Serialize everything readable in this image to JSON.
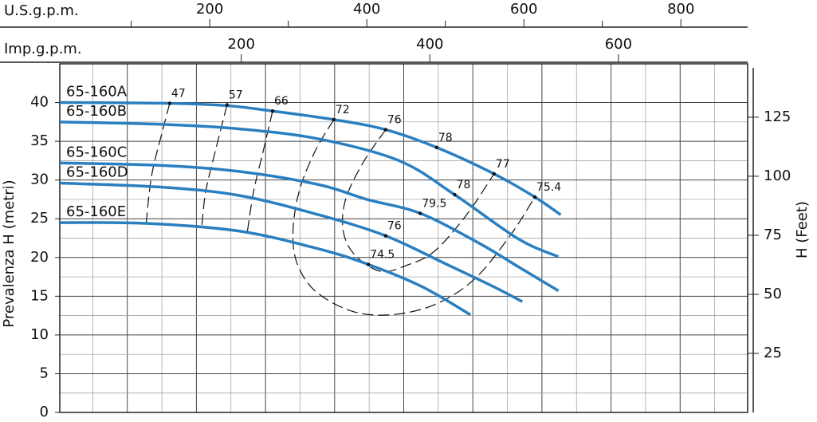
{
  "chart_data": {
    "type": "line",
    "xlabel": "U.S.g.p.m.",
    "x2label": "Imp.g.p.m.",
    "ylabel": "Prevalenza H (metri)",
    "y2label": "H (Feet)",
    "xlim": [
      9,
      885
    ],
    "xticks": [
      200,
      400,
      600,
      800
    ],
    "x_minor_ticks": [
      100,
      300,
      500,
      700
    ],
    "x2lim": [
      7.5,
      737
    ],
    "x2ticks": [
      200,
      400,
      600
    ],
    "xgrid": [
      95,
      183,
      271,
      359,
      447,
      535,
      623,
      711,
      799
    ],
    "ylim": [
      0,
      45
    ],
    "yticks": [
      0,
      5,
      10,
      15,
      20,
      25,
      30,
      35,
      40
    ],
    "y2lim": [
      0,
      147.6
    ],
    "y2ticks": [
      25,
      50,
      75,
      100,
      125
    ],
    "grid": true,
    "series": [
      {
        "name": "65-160A",
        "color": "#2a7fc1",
        "x": [
          9,
          149,
          222,
          280,
          358,
          424,
          489,
          562,
          614,
          647
        ],
        "values": [
          40,
          39.9,
          39.6,
          38.9,
          37.8,
          36.5,
          34.2,
          30.8,
          27.8,
          25.5
        ]
      },
      {
        "name": "65-160B",
        "color": "#2a7fc1",
        "x": [
          9,
          136,
          238,
          339,
          441,
          512,
          593,
          644
        ],
        "values": [
          37.5,
          37.2,
          36.6,
          35.3,
          32.5,
          28.1,
          22.4,
          20.1
        ]
      },
      {
        "name": "65-160C",
        "color": "#2a7fc1",
        "x": [
          9,
          136,
          238,
          339,
          400,
          468,
          542,
          593,
          644
        ],
        "values": [
          32.2,
          31.9,
          31.1,
          29.4,
          27.5,
          25.7,
          21.9,
          18.8,
          15.7
        ]
      },
      {
        "name": "65-160D",
        "color": "#2a7fc1",
        "x": [
          9,
          136,
          238,
          339,
          424,
          502,
          562,
          598
        ],
        "values": [
          29.6,
          29.1,
          28,
          25.5,
          22.8,
          19.1,
          16.2,
          14.3
        ]
      },
      {
        "name": "65-160E",
        "color": "#2a7fc1",
        "x": [
          9,
          119,
          238,
          339,
          402,
          471,
          532
        ],
        "values": [
          24.5,
          24.4,
          23.4,
          21.1,
          19.1,
          16.2,
          12.6
        ]
      }
    ],
    "efficiency_color": "#111",
    "efficiency_curves": [
      {
        "x": [
          149,
          141,
          126,
          119
        ],
        "values": [
          39.9,
          36.8,
          30.6,
          24.4
        ]
      },
      {
        "x": [
          222,
          207,
          195,
          190
        ],
        "values": [
          39.7,
          33.7,
          28.6,
          24.2
        ]
      },
      {
        "x": [
          280,
          268,
          256,
          248
        ],
        "values": [
          38.9,
          33.7,
          28.6,
          23.4
        ]
      },
      {
        "x": [
          358,
          334,
          314,
          306,
          311,
          334,
          380,
          430,
          486,
          537,
          583,
          614
        ],
        "values": [
          37.8,
          33.7,
          28.6,
          23.4,
          19.3,
          15.7,
          13.1,
          12.6,
          13.9,
          17.2,
          22.9,
          27.8
        ]
      },
      {
        "x": [
          424,
          395,
          373,
          370,
          385,
          418,
          451,
          486,
          527,
          562
        ],
        "values": [
          36.5,
          32.2,
          27.5,
          23.4,
          20.3,
          18.2,
          19,
          20.8,
          25.5,
          30.8
        ]
      }
    ],
    "efficiency_points": [
      {
        "value": 47,
        "x": 149,
        "y": 39.9
      },
      {
        "value": 57,
        "x": 222,
        "y": 39.7
      },
      {
        "value": 66,
        "x": 280,
        "y": 38.9
      },
      {
        "value": 72,
        "x": 358,
        "y": 37.8
      },
      {
        "value": 76,
        "x": 424,
        "y": 36.5
      },
      {
        "value": 78,
        "x": 489,
        "y": 34.2
      },
      {
        "value": 77,
        "x": 562,
        "y": 30.8
      },
      {
        "value": 75.4,
        "x": 614,
        "y": 27.8
      },
      {
        "value": 78,
        "x": 512,
        "y": 28.1
      },
      {
        "value": 79.5,
        "x": 468,
        "y": 25.7
      },
      {
        "value": 76,
        "x": 424,
        "y": 22.8
      },
      {
        "value": 74.5,
        "x": 402,
        "y": 19.1
      }
    ]
  }
}
